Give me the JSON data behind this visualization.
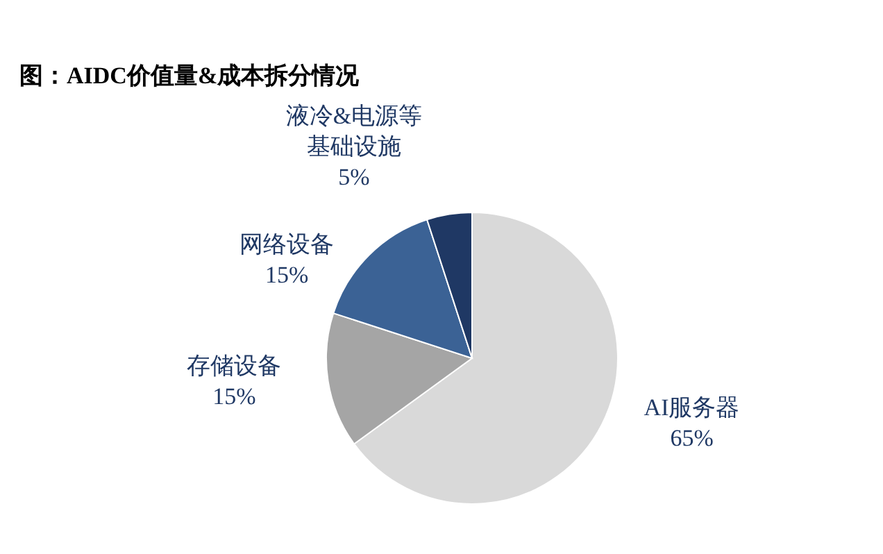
{
  "chart_data": {
    "type": "pie",
    "title": "图：AIDC价值量&成本拆分情况",
    "categories": [
      "AI服务器",
      "存储设备",
      "网络设备",
      "液冷&电源等基础设施"
    ],
    "values": [
      65,
      15,
      15,
      5
    ],
    "value_labels": [
      "65%",
      "15%",
      "15%",
      "5%"
    ],
    "colors": [
      "#d9d9d9",
      "#a5a5a5",
      "#3b6295",
      "#1f3864"
    ]
  }
}
